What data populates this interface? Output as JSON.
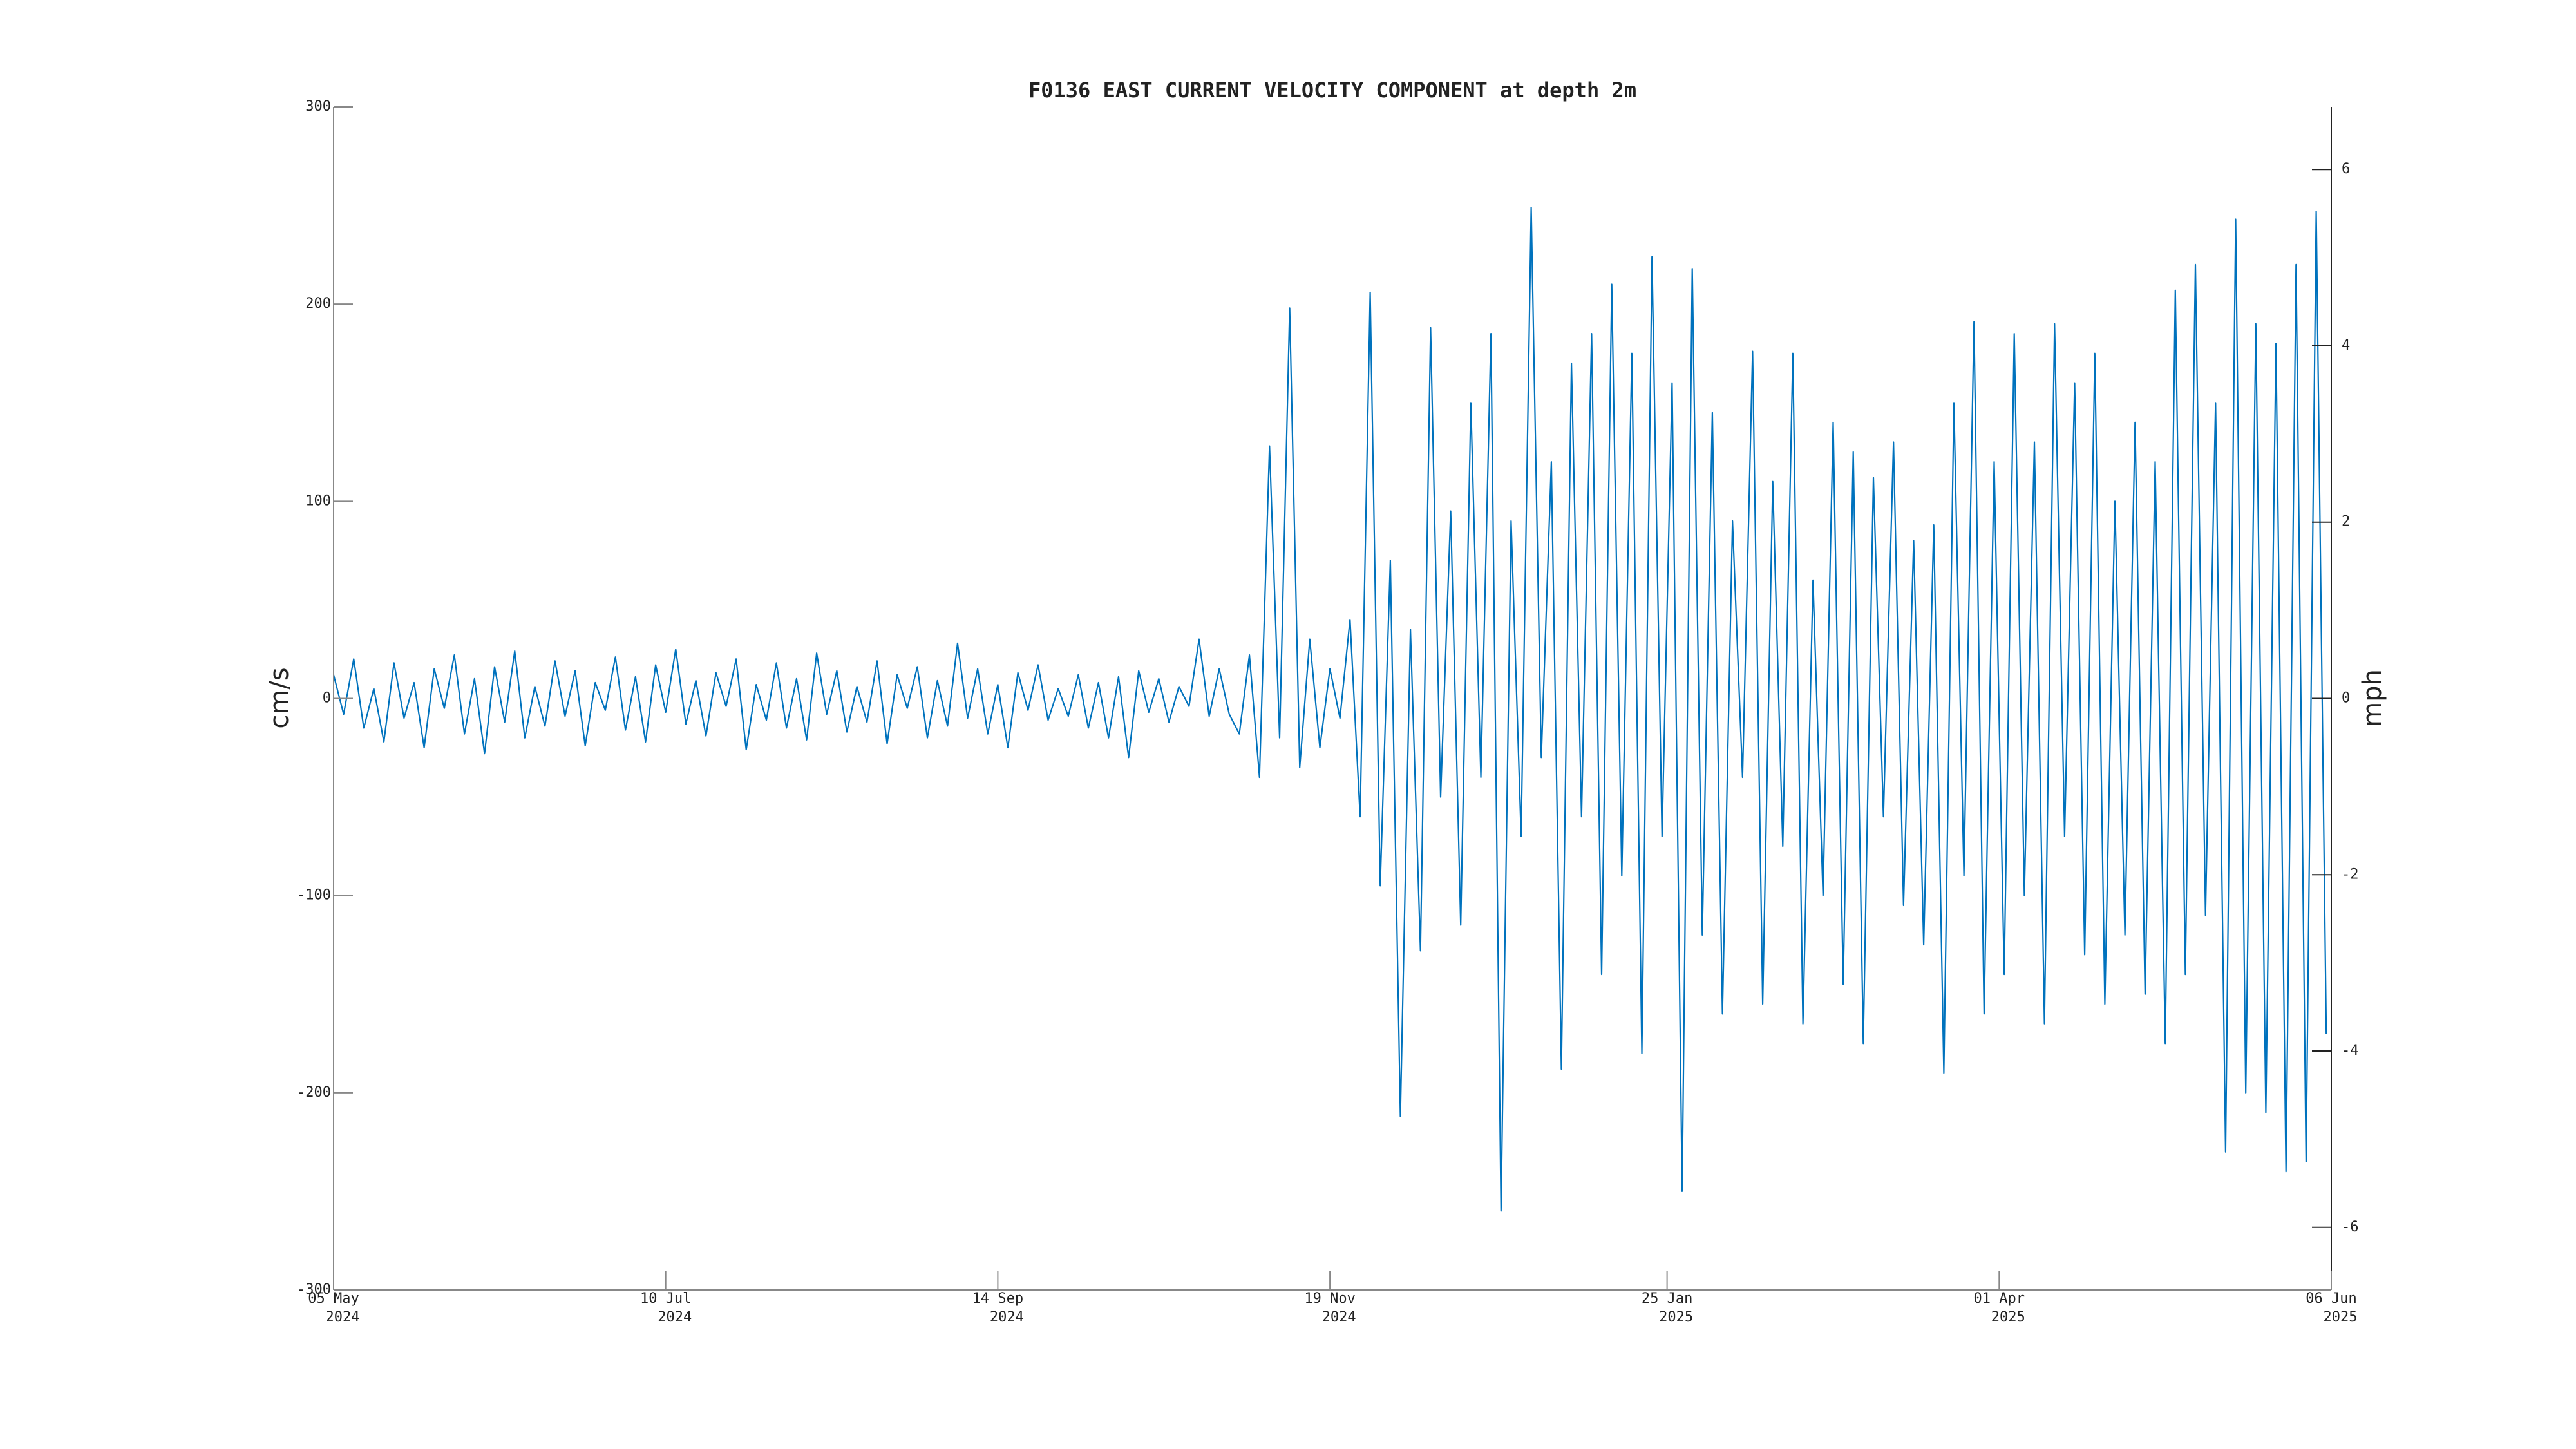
{
  "chart_data": {
    "type": "line",
    "title": "F0136 EAST CURRENT VELOCITY COMPONENT at depth 2m",
    "ylabel": "cm/s",
    "y2label": "mph",
    "color": "#0072bd",
    "x": [
      "2024-05-05",
      "2024-05-07",
      "2024-05-09",
      "2024-05-11",
      "2024-05-13",
      "2024-05-15",
      "2024-05-17",
      "2024-05-19",
      "2024-05-21",
      "2024-05-23",
      "2024-05-25",
      "2024-05-27",
      "2024-05-29",
      "2024-05-31",
      "2024-06-02",
      "2024-06-04",
      "2024-06-06",
      "2024-06-08",
      "2024-06-10",
      "2024-06-12",
      "2024-06-14",
      "2024-06-16",
      "2024-06-18",
      "2024-06-20",
      "2024-06-22",
      "2024-06-24",
      "2024-06-26",
      "2024-06-28",
      "2024-06-30",
      "2024-07-02",
      "2024-07-04",
      "2024-07-06",
      "2024-07-08",
      "2024-07-10",
      "2024-07-12",
      "2024-07-14",
      "2024-07-16",
      "2024-07-18",
      "2024-07-20",
      "2024-07-22",
      "2024-07-24",
      "2024-07-26",
      "2024-07-28",
      "2024-07-30",
      "2024-08-01",
      "2024-08-03",
      "2024-08-05",
      "2024-08-07",
      "2024-08-09",
      "2024-08-11",
      "2024-08-13",
      "2024-08-15",
      "2024-08-17",
      "2024-08-19",
      "2024-08-21",
      "2024-08-23",
      "2024-08-25",
      "2024-08-27",
      "2024-08-29",
      "2024-08-31",
      "2024-09-02",
      "2024-09-04",
      "2024-09-06",
      "2024-09-08",
      "2024-09-10",
      "2024-09-12",
      "2024-09-14",
      "2024-09-16",
      "2024-09-18",
      "2024-09-20",
      "2024-09-22",
      "2024-09-24",
      "2024-09-26",
      "2024-09-28",
      "2024-09-30",
      "2024-10-02",
      "2024-10-04",
      "2024-10-06",
      "2024-10-08",
      "2024-10-10",
      "2024-10-12",
      "2024-10-14",
      "2024-10-16",
      "2024-10-18",
      "2024-10-20",
      "2024-10-22",
      "2024-10-24",
      "2024-10-26",
      "2024-10-28",
      "2024-10-30",
      "2024-11-01",
      "2024-11-03",
      "2024-11-05",
      "2024-11-07",
      "2024-11-09",
      "2024-11-11",
      "2024-11-13",
      "2024-11-15",
      "2024-11-17",
      "2024-11-19",
      "2024-11-21",
      "2024-11-23",
      "2024-11-25",
      "2024-11-27",
      "2024-11-29",
      "2024-12-01",
      "2024-12-03",
      "2024-12-05",
      "2024-12-07",
      "2024-12-09",
      "2024-12-11",
      "2024-12-13",
      "2024-12-15",
      "2024-12-17",
      "2024-12-19",
      "2024-12-21",
      "2024-12-23",
      "2024-12-25",
      "2024-12-27",
      "2024-12-29",
      "2024-12-31",
      "2025-01-02",
      "2025-01-04",
      "2025-01-06",
      "2025-01-08",
      "2025-01-10",
      "2025-01-12",
      "2025-01-14",
      "2025-01-16",
      "2025-01-18",
      "2025-01-20",
      "2025-01-22",
      "2025-01-24",
      "2025-01-26",
      "2025-01-28",
      "2025-01-30",
      "2025-02-01",
      "2025-02-03",
      "2025-02-05",
      "2025-02-07",
      "2025-02-09",
      "2025-02-11",
      "2025-02-13",
      "2025-02-15",
      "2025-02-17",
      "2025-02-19",
      "2025-02-21",
      "2025-02-23",
      "2025-02-25",
      "2025-02-27",
      "2025-03-01",
      "2025-03-03",
      "2025-03-05",
      "2025-03-07",
      "2025-03-09",
      "2025-03-11",
      "2025-03-13",
      "2025-03-15",
      "2025-03-17",
      "2025-03-19",
      "2025-03-21",
      "2025-03-23",
      "2025-03-25",
      "2025-03-27",
      "2025-03-29",
      "2025-03-31",
      "2025-04-02",
      "2025-04-04",
      "2025-04-06",
      "2025-04-08",
      "2025-04-10",
      "2025-04-12",
      "2025-04-14",
      "2025-04-16",
      "2025-04-18",
      "2025-04-20",
      "2025-04-22",
      "2025-04-24",
      "2025-04-26",
      "2025-04-28",
      "2025-04-30",
      "2025-05-02",
      "2025-05-04",
      "2025-05-06",
      "2025-05-08",
      "2025-05-10",
      "2025-05-12",
      "2025-05-14",
      "2025-05-16",
      "2025-05-18",
      "2025-05-20",
      "2025-05-22",
      "2025-05-24",
      "2025-05-26",
      "2025-05-28",
      "2025-05-30",
      "2025-06-01",
      "2025-06-03",
      "2025-06-05"
    ],
    "values": [
      12,
      -8,
      20,
      -15,
      5,
      -22,
      18,
      -10,
      8,
      -25,
      15,
      -5,
      22,
      -18,
      10,
      -28,
      16,
      -12,
      24,
      -20,
      6,
      -14,
      19,
      -9,
      14,
      -24,
      8,
      -6,
      21,
      -16,
      11,
      -22,
      17,
      -7,
      25,
      -13,
      9,
      -19,
      13,
      -4,
      20,
      -26,
      7,
      -11,
      18,
      -15,
      10,
      -21,
      23,
      -8,
      14,
      -17,
      6,
      -12,
      19,
      -23,
      12,
      -5,
      16,
      -20,
      9,
      -14,
      28,
      -10,
      15,
      -18,
      7,
      -25,
      13,
      -6,
      17,
      -11,
      5,
      -9,
      12,
      -15,
      8,
      -20,
      11,
      -30,
      14,
      -7,
      10,
      -12,
      6,
      -4,
      30,
      -9,
      15,
      -8,
      -18,
      22,
      -40,
      128,
      -20,
      198,
      -35,
      30,
      -25,
      15,
      -10,
      40,
      -60,
      206,
      -95,
      70,
      -212,
      35,
      -128,
      188,
      -50,
      95,
      -115,
      150,
      -40,
      185,
      -260,
      90,
      -70,
      249,
      -30,
      120,
      -188,
      170,
      -60,
      185,
      -140,
      210,
      -90,
      175,
      -180,
      224,
      -70,
      160,
      -250,
      218,
      -120,
      145,
      -160,
      90,
      -40,
      176,
      -155,
      110,
      -75,
      175,
      -165,
      60,
      -100,
      140,
      -145,
      125,
      -175,
      112,
      -60,
      130,
      -105,
      80,
      -125,
      88,
      -190,
      150,
      -90,
      191,
      -160,
      120,
      -140,
      185,
      -100,
      130,
      -165,
      190,
      -70,
      160,
      -130,
      175,
      -155,
      100,
      -120,
      140,
      -150,
      120,
      -175,
      207,
      -140,
      220,
      -110,
      150,
      -230,
      243,
      -200,
      190,
      -210,
      180,
      -240,
      220,
      -235,
      247,
      -170
    ],
    "xlim": [
      "2024-05-05",
      "2025-06-06"
    ],
    "xticks": [
      {
        "value": "2024-05-05",
        "label": [
          "05 May",
          "2024"
        ]
      },
      {
        "value": "2024-07-10",
        "label": [
          "10 Jul",
          "2024"
        ]
      },
      {
        "value": "2024-09-14",
        "label": [
          "14 Sep",
          "2024"
        ]
      },
      {
        "value": "2024-11-19",
        "label": [
          "19 Nov",
          "2024"
        ]
      },
      {
        "value": "2025-01-25",
        "label": [
          "25 Jan",
          "2025"
        ]
      },
      {
        "value": "2025-04-01",
        "label": [
          "01 Apr",
          "2025"
        ]
      },
      {
        "value": "2025-06-06",
        "label": [
          "06 Jun",
          "2025"
        ]
      }
    ],
    "ylim": [
      -300,
      300
    ],
    "yticks": [
      -300,
      -200,
      -100,
      0,
      100,
      200,
      300
    ],
    "y2lim": [
      -6.71,
      6.71
    ],
    "y2ticks": [
      -6,
      -4,
      -2,
      0,
      2,
      4,
      6
    ],
    "grid": false
  }
}
